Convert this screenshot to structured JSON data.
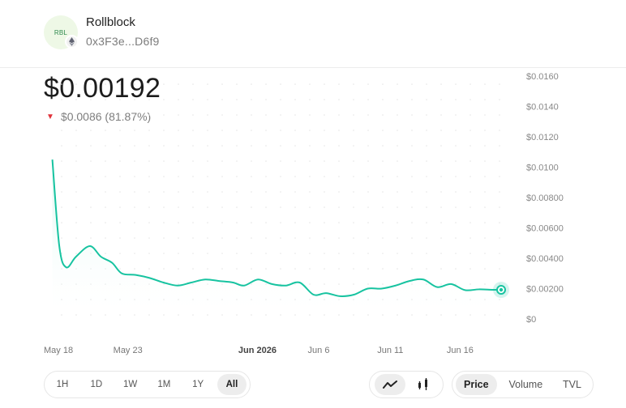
{
  "token": {
    "logo_text": "RBL",
    "name": "Rollblock",
    "address": "0x3F3e...D6f9",
    "chain_icon": "ethereum-icon"
  },
  "price": {
    "current": "$0.00192",
    "change_text": "$0.0086 (81.87%)",
    "direction_icon": "triangle-down-icon"
  },
  "colors": {
    "line": "#17c3a0",
    "negative": "#e0323a",
    "area_top": "#d5f6ee"
  },
  "chart_data": {
    "type": "area",
    "title": "",
    "y_tick_labels": [
      "$0.0160",
      "$0.0140",
      "$0.0120",
      "$0.0100",
      "$0.00800",
      "$0.00600",
      "$0.00400",
      "$0.00200",
      "$0"
    ],
    "y_tick_values": [
      0.016,
      0.014,
      0.012,
      0.01,
      0.008,
      0.006,
      0.004,
      0.002,
      0
    ],
    "ylim": [
      0,
      0.016
    ],
    "x_tick_labels": [
      {
        "label": "May 18",
        "day": 0,
        "major": false
      },
      {
        "label": "May 23",
        "day": 5,
        "major": false
      },
      {
        "label": "Jun 2026",
        "day": 14,
        "major": true
      },
      {
        "label": "Jun 6",
        "day": 19,
        "major": false
      },
      {
        "label": "Jun 11",
        "day": 24,
        "major": false
      },
      {
        "label": "Jun 16",
        "day": 29,
        "major": false
      }
    ],
    "xlim": [
      0,
      33.5
    ],
    "series": [
      {
        "x": [
          0.5,
          1.0,
          1.5,
          2.2,
          3.2,
          4.0,
          4.8,
          5.5,
          6.5,
          7.5,
          8.5,
          9.5,
          10.5,
          11.5,
          12.5,
          13.5,
          14.3,
          15.3,
          16.3,
          17.3,
          18.3,
          19.3,
          20.2,
          21.2,
          22.2,
          23.2,
          24.2,
          25.2,
          26.2,
          27.2,
          28.2,
          29.2,
          30.2,
          31.2,
          32.2,
          32.8
        ],
        "values": [
          0.0105,
          0.0048,
          0.0034,
          0.0041,
          0.0048,
          0.0041,
          0.0037,
          0.003,
          0.0029,
          0.0027,
          0.0024,
          0.0022,
          0.0024,
          0.0026,
          0.0025,
          0.0024,
          0.0022,
          0.0026,
          0.0023,
          0.0022,
          0.0024,
          0.0016,
          0.0017,
          0.0015,
          0.0016,
          0.002,
          0.002,
          0.0022,
          0.0025,
          0.0026,
          0.0021,
          0.0023,
          0.0019,
          0.00195,
          0.00192,
          0.00192
        ]
      }
    ],
    "last_point_marker": true,
    "grid": "dotted"
  },
  "controls": {
    "ranges": [
      "1H",
      "1D",
      "1W",
      "1M",
      "1Y",
      "All"
    ],
    "active_range": "All",
    "chart_types": [
      "line-chart-icon",
      "candlestick-icon"
    ],
    "active_chart_type": "line-chart-icon",
    "metrics": [
      "Price",
      "Volume",
      "TVL"
    ],
    "active_metric": "Price"
  }
}
